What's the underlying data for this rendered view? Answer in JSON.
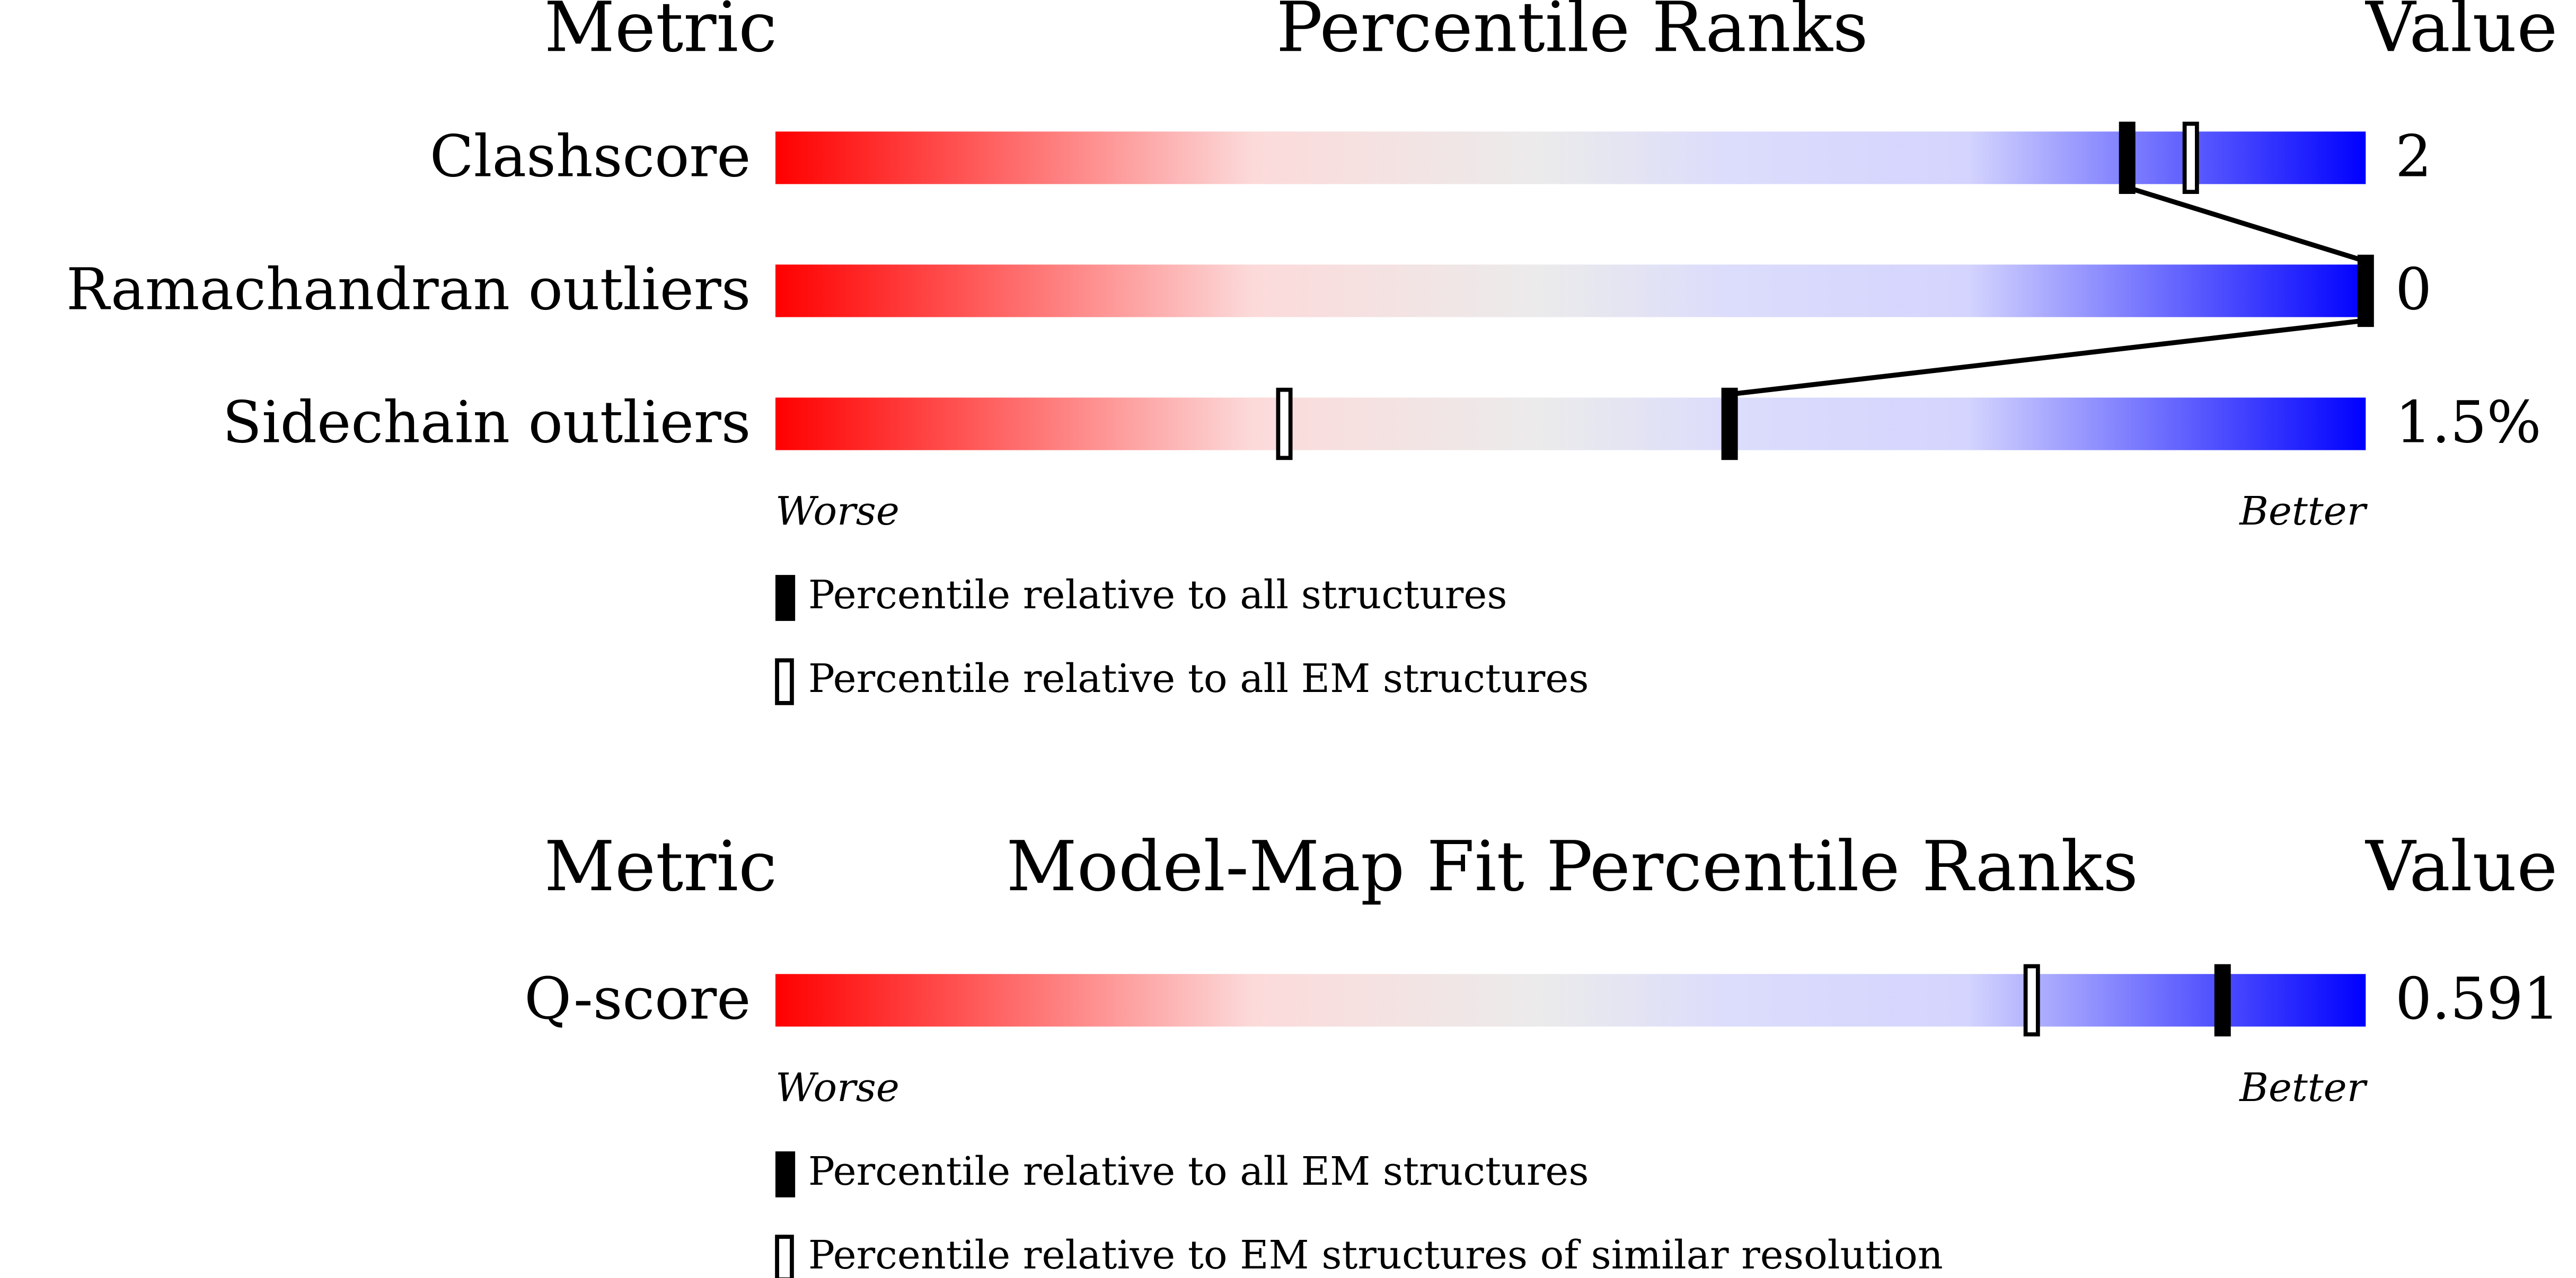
{
  "chart_data": [
    {
      "type": "percentile-slider",
      "headers": {
        "metric": "Metric",
        "title": "Percentile Ranks",
        "value": "Value"
      },
      "categories": [
        "Clashscore",
        "Ramachandran outliers",
        "Sidechain outliers"
      ],
      "metric_values": [
        "2",
        "0",
        "1.5%"
      ],
      "series": [
        {
          "name": "Percentile relative to all structures",
          "style": "filled",
          "color": "#000000",
          "values": [
            85,
            100,
            60
          ]
        },
        {
          "name": "Percentile relative to all EM structures",
          "style": "open",
          "color": "#000000",
          "values": [
            89,
            null,
            32
          ]
        }
      ],
      "xlim": [
        0,
        100
      ],
      "scale_labels": [
        "Worse",
        "Better"
      ]
    },
    {
      "type": "percentile-slider",
      "headers": {
        "metric": "Metric",
        "title": "Model-Map Fit Percentile Ranks",
        "value": "Value"
      },
      "categories": [
        "Q-score"
      ],
      "metric_values": [
        "0.591"
      ],
      "series": [
        {
          "name": "Percentile relative to all EM structures",
          "style": "filled",
          "color": "#000000",
          "values": [
            91
          ]
        },
        {
          "name": "Percentile relative to EM structures of similar resolution",
          "style": "open",
          "color": "#000000",
          "values": [
            79
          ]
        }
      ],
      "xlim": [
        0,
        100
      ],
      "scale_labels": [
        "Worse",
        "Better"
      ]
    }
  ]
}
